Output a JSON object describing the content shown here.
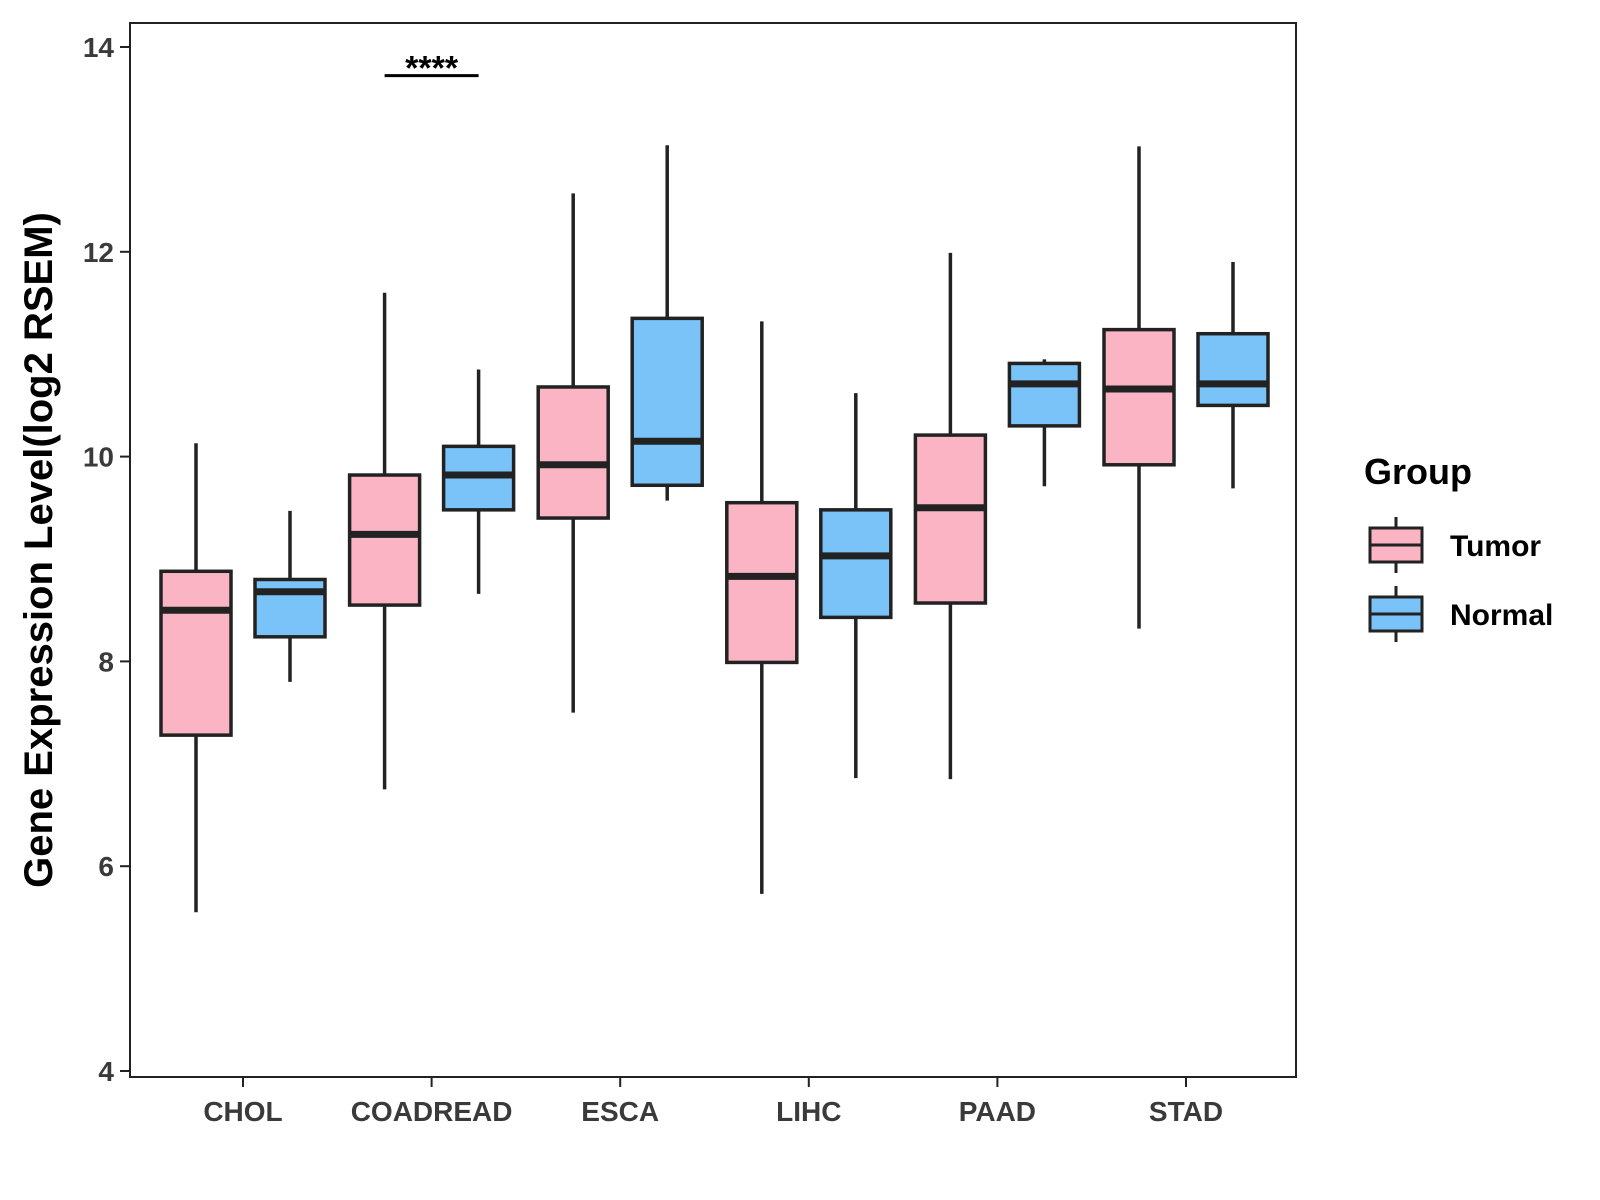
{
  "chart_data": {
    "type": "boxplot",
    "title": "",
    "xlabel": "",
    "ylabel": "Gene Expression Level(log2 RSEM)",
    "ylim": [
      4,
      14
    ],
    "yticks": [
      4,
      6,
      8,
      10,
      12,
      14
    ],
    "categories": [
      "CHOL",
      "COADREAD",
      "ESCA",
      "LIHC",
      "PAAD",
      "STAD"
    ],
    "legend": {
      "title": "Group",
      "position": "right"
    },
    "series": [
      {
        "name": "Tumor",
        "color": "#fbb4c4",
        "boxes": [
          {
            "min": 5.55,
            "q1": 7.28,
            "median": 8.5,
            "q3": 8.88,
            "max": 10.13
          },
          {
            "min": 6.75,
            "q1": 8.55,
            "median": 9.24,
            "q3": 9.82,
            "max": 11.6
          },
          {
            "min": 7.5,
            "q1": 9.4,
            "median": 9.92,
            "q3": 10.68,
            "max": 12.57
          },
          {
            "min": 5.73,
            "q1": 7.99,
            "median": 8.83,
            "q3": 9.55,
            "max": 11.32
          },
          {
            "min": 6.85,
            "q1": 8.57,
            "median": 9.5,
            "q3": 10.21,
            "max": 11.99
          },
          {
            "min": 8.32,
            "q1": 9.92,
            "median": 10.66,
            "q3": 11.24,
            "max": 13.03
          }
        ]
      },
      {
        "name": "Normal",
        "color": "#7ac3f9",
        "boxes": [
          {
            "min": 7.8,
            "q1": 8.24,
            "median": 8.68,
            "q3": 8.8,
            "max": 9.47
          },
          {
            "min": 8.66,
            "q1": 9.48,
            "median": 9.82,
            "q3": 10.1,
            "max": 10.85
          },
          {
            "min": 9.57,
            "q1": 9.72,
            "median": 10.15,
            "q3": 11.35,
            "max": 13.04
          },
          {
            "min": 6.86,
            "q1": 8.43,
            "median": 9.03,
            "q3": 9.48,
            "max": 10.62
          },
          {
            "min": 9.71,
            "q1": 10.3,
            "median": 10.71,
            "q3": 10.91,
            "max": 10.95
          },
          {
            "min": 9.69,
            "q1": 10.5,
            "median": 10.71,
            "q3": 11.2,
            "max": 11.9
          }
        ]
      }
    ],
    "annotations": [
      {
        "category": "COADREAD",
        "label": "****",
        "y": 13.72
      }
    ]
  }
}
